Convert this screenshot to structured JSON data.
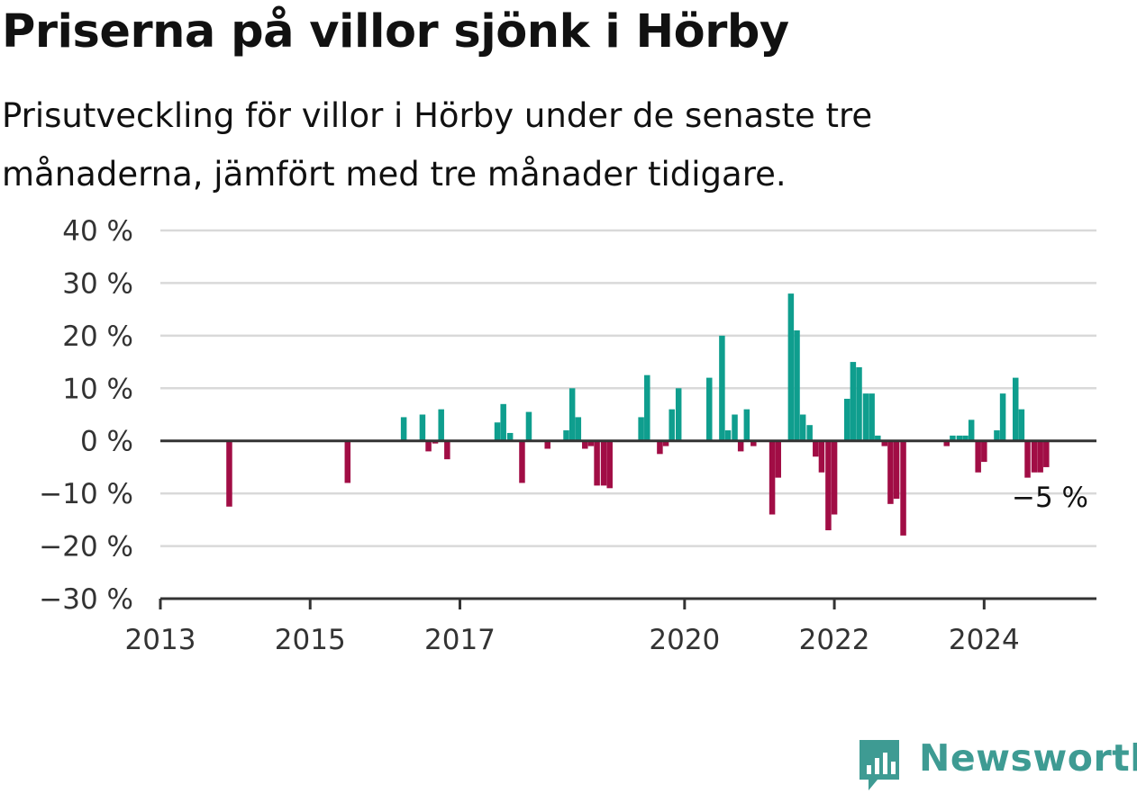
{
  "header": {
    "title": "Priserna på villor sjönk i Hörby",
    "subtitle": "Prisutveckling för villor i Hörby under de senaste tre månaderna, jämfört med tre månader tidigare."
  },
  "brand": {
    "name": "Newsworthy",
    "color": "#3e9b93",
    "icon": "newsworthy-logo-icon"
  },
  "colors": {
    "positive": "#0f9e8e",
    "negative": "#a10d45",
    "grid": "#d9d9d9",
    "axis": "#333333"
  },
  "chart_data": {
    "type": "bar",
    "title": "Priserna på villor sjönk i Hörby",
    "subtitle": "Prisutveckling för villor i Hörby under de senaste tre månaderna, jämfört med tre månader tidigare.",
    "xlabel": "",
    "ylabel": "",
    "ylim": [
      -30,
      40
    ],
    "xlim": [
      2013.0,
      2025.5
    ],
    "grid": true,
    "legend": "none",
    "y_ticks": [
      {
        "value": 40,
        "label": "40 %"
      },
      {
        "value": 30,
        "label": "30 %"
      },
      {
        "value": 20,
        "label": "20 %"
      },
      {
        "value": 10,
        "label": "10 %"
      },
      {
        "value": 0,
        "label": "0 %"
      },
      {
        "value": -10,
        "label": "−10 %"
      },
      {
        "value": -20,
        "label": "−20 %"
      },
      {
        "value": -30,
        "label": "−30 %"
      }
    ],
    "x_ticks": [
      {
        "value": 2013,
        "label": "2013"
      },
      {
        "value": 2015,
        "label": "2015"
      },
      {
        "value": 2017,
        "label": "2017"
      },
      {
        "value": 2020,
        "label": "2020"
      },
      {
        "value": 2022,
        "label": "2022"
      },
      {
        "value": 2024,
        "label": "2024"
      }
    ],
    "last_value_label": "−5 %",
    "points": [
      {
        "x": 2013.92,
        "y": -12.5
      },
      {
        "x": 2015.5,
        "y": -8
      },
      {
        "x": 2016.25,
        "y": 4.5
      },
      {
        "x": 2016.5,
        "y": 5
      },
      {
        "x": 2016.58,
        "y": -2
      },
      {
        "x": 2016.67,
        "y": -0.5
      },
      {
        "x": 2016.75,
        "y": 6
      },
      {
        "x": 2016.83,
        "y": -3.5
      },
      {
        "x": 2017.5,
        "y": 3.5
      },
      {
        "x": 2017.58,
        "y": 7
      },
      {
        "x": 2017.67,
        "y": 1.5
      },
      {
        "x": 2017.83,
        "y": -8
      },
      {
        "x": 2017.92,
        "y": 5.5
      },
      {
        "x": 2018.17,
        "y": -1.5
      },
      {
        "x": 2018.42,
        "y": 2
      },
      {
        "x": 2018.5,
        "y": 10
      },
      {
        "x": 2018.58,
        "y": 4.5
      },
      {
        "x": 2018.67,
        "y": -1.5
      },
      {
        "x": 2018.75,
        "y": -1
      },
      {
        "x": 2018.83,
        "y": -8.5
      },
      {
        "x": 2018.92,
        "y": -8.5
      },
      {
        "x": 2019.0,
        "y": -9
      },
      {
        "x": 2019.42,
        "y": 4.5
      },
      {
        "x": 2019.5,
        "y": 12.5
      },
      {
        "x": 2019.67,
        "y": -2.5
      },
      {
        "x": 2019.75,
        "y": -1
      },
      {
        "x": 2019.83,
        "y": 6
      },
      {
        "x": 2019.92,
        "y": 10
      },
      {
        "x": 2020.33,
        "y": 12
      },
      {
        "x": 2020.5,
        "y": 20
      },
      {
        "x": 2020.58,
        "y": 2
      },
      {
        "x": 2020.67,
        "y": 5
      },
      {
        "x": 2020.75,
        "y": -2
      },
      {
        "x": 2020.83,
        "y": 6
      },
      {
        "x": 2020.92,
        "y": -1
      },
      {
        "x": 2021.17,
        "y": -14
      },
      {
        "x": 2021.25,
        "y": -7
      },
      {
        "x": 2021.42,
        "y": 28
      },
      {
        "x": 2021.5,
        "y": 21
      },
      {
        "x": 2021.58,
        "y": 5
      },
      {
        "x": 2021.67,
        "y": 3
      },
      {
        "x": 2021.75,
        "y": -3
      },
      {
        "x": 2021.83,
        "y": -6
      },
      {
        "x": 2021.92,
        "y": -17
      },
      {
        "x": 2022.0,
        "y": -14
      },
      {
        "x": 2022.17,
        "y": 8
      },
      {
        "x": 2022.25,
        "y": 15
      },
      {
        "x": 2022.33,
        "y": 14
      },
      {
        "x": 2022.42,
        "y": 9
      },
      {
        "x": 2022.5,
        "y": 9
      },
      {
        "x": 2022.58,
        "y": 1
      },
      {
        "x": 2022.67,
        "y": -1
      },
      {
        "x": 2022.75,
        "y": -12
      },
      {
        "x": 2022.83,
        "y": -11
      },
      {
        "x": 2022.92,
        "y": -18
      },
      {
        "x": 2023.5,
        "y": -1
      },
      {
        "x": 2023.58,
        "y": 1
      },
      {
        "x": 2023.67,
        "y": 1
      },
      {
        "x": 2023.75,
        "y": 1
      },
      {
        "x": 2023.83,
        "y": 4
      },
      {
        "x": 2023.92,
        "y": -6
      },
      {
        "x": 2024.0,
        "y": -4
      },
      {
        "x": 2024.17,
        "y": 2
      },
      {
        "x": 2024.25,
        "y": 9
      },
      {
        "x": 2024.42,
        "y": 12
      },
      {
        "x": 2024.5,
        "y": 6
      },
      {
        "x": 2024.58,
        "y": -7
      },
      {
        "x": 2024.67,
        "y": -6
      },
      {
        "x": 2024.75,
        "y": -6
      },
      {
        "x": 2024.83,
        "y": -5
      }
    ]
  }
}
